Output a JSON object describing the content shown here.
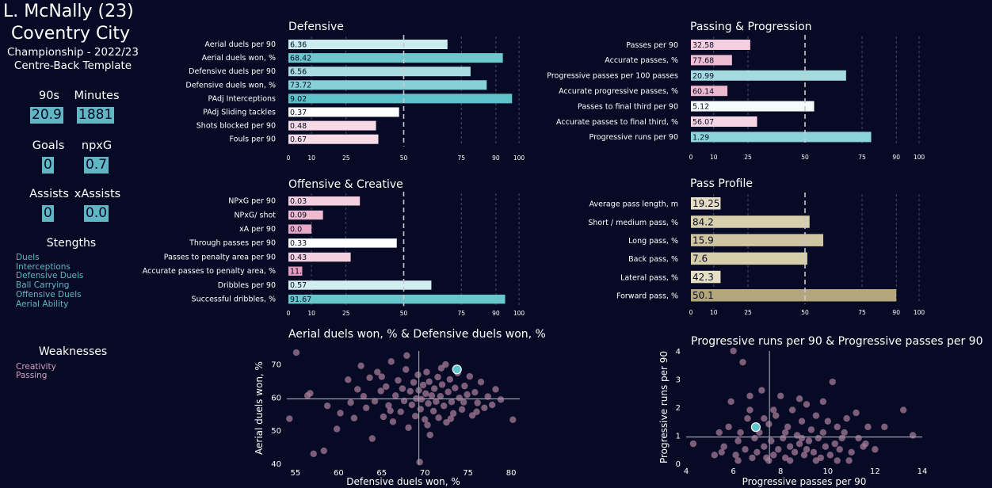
{
  "player": {
    "name": "L. McNally (23)",
    "team": "Coventry City",
    "competition": "Championship - 2022/23",
    "template": "Centre-Back Template"
  },
  "summary": {
    "nineties_label": "90s",
    "nineties_value": "20.9",
    "minutes_label": "Minutes",
    "minutes_value": "1881",
    "goals_label": "Goals",
    "goals_value": "0",
    "npxg_label": "npxG",
    "npxg_value": "0.7",
    "assists_label": "Assists",
    "assists_value": "0",
    "xassists_label": "xAssists",
    "xassists_value": "0.0"
  },
  "strengths": {
    "title": "Stengths",
    "items": [
      "Duels",
      "Interceptions",
      "Defensive Duels",
      "Ball Carrying",
      "Offensive Duels",
      "Aerial Ability"
    ]
  },
  "weaknesses": {
    "title": "Weaknesses",
    "items": [
      "Creativity",
      "Passing"
    ]
  },
  "colors": {
    "background": "#070a24",
    "strength_text": "#5fb7c4",
    "weakness_text": "#d99fc3",
    "scatter_point": "#a57b97",
    "highlight_point": "#5ec6cc",
    "value_box": "#5fb7c4"
  },
  "chart_data": [
    {
      "id": "defensive",
      "type": "bar",
      "orientation": "horizontal",
      "title": "Defensive",
      "xlim": [
        0,
        100
      ],
      "ticks": [
        0,
        10,
        25,
        50,
        75,
        90,
        100
      ],
      "median_line": 50,
      "bars": [
        {
          "label": "Aerial duels per 90",
          "value_text": "6.36",
          "percentile": 69,
          "color": "#cbecef"
        },
        {
          "label": "Aerial duels won, %",
          "value_text": "68.42",
          "percentile": 93,
          "color": "#6cc7ce"
        },
        {
          "label": "Defensive duels per 90",
          "value_text": "6.56",
          "percentile": 79,
          "color": "#a9dde2"
        },
        {
          "label": "Defensive duels won, %",
          "value_text": "73.72",
          "percentile": 86,
          "color": "#86d1d7"
        },
        {
          "label": "PAdj Interceptions",
          "value_text": "9.02",
          "percentile": 97,
          "color": "#5fc2ca"
        },
        {
          "label": "PAdj Sliding tackles",
          "value_text": "0.37",
          "percentile": 48,
          "color": "#ffffff"
        },
        {
          "label": "Shots blocked per 90",
          "value_text": "0.48",
          "percentile": 38,
          "color": "#f6dbe7"
        },
        {
          "label": "Fouls per 90",
          "value_text": "0.67",
          "percentile": 39,
          "color": "#f7dce8"
        }
      ]
    },
    {
      "id": "passing",
      "type": "bar",
      "orientation": "horizontal",
      "title": "Passing & Progression",
      "xlim": [
        0,
        100
      ],
      "ticks": [
        0,
        10,
        25,
        50,
        75,
        90,
        100
      ],
      "median_line": 50,
      "bars": [
        {
          "label": "Passes per 90",
          "value_text": "32.58",
          "percentile": 26,
          "color": "#f3cfdf"
        },
        {
          "label": "Accurate passes, %",
          "value_text": "77.68",
          "percentile": 18,
          "color": "#eebdd3"
        },
        {
          "label": "Progressive passes per 100 passes",
          "value_text": "20.99",
          "percentile": 68,
          "color": "#a3dbe0"
        },
        {
          "label": "Accurate progressive passes, %",
          "value_text": "60.14",
          "percentile": 16,
          "color": "#ecb8cf"
        },
        {
          "label": "Passes to final third per 90",
          "value_text": "5.12",
          "percentile": 54,
          "color": "#f5fbfc"
        },
        {
          "label": "Accurate passes to final third, %",
          "value_text": "56.07",
          "percentile": 29,
          "color": "#f5d5e3"
        },
        {
          "label": "Progressive runs per 90",
          "value_text": "1.29",
          "percentile": 79,
          "color": "#8dd4da"
        }
      ]
    },
    {
      "id": "offensive",
      "type": "bar",
      "orientation": "horizontal",
      "title": "Offensive & Creative",
      "xlim": [
        0,
        100
      ],
      "ticks": [
        0,
        10,
        25,
        50,
        75,
        90,
        100
      ],
      "median_line": 50,
      "bars": [
        {
          "label": "NPxG per 90",
          "value_text": "0.03",
          "percentile": 31,
          "color": "#f3cfe0"
        },
        {
          "label": "NPxG/ shot",
          "value_text": "0.09",
          "percentile": 15,
          "color": "#eebad0"
        },
        {
          "label": "xA per 90",
          "value_text": "0.0",
          "percentile": 10,
          "color": "#e8a9c5"
        },
        {
          "label": "Through passes per 90",
          "value_text": "0.33",
          "percentile": 47,
          "color": "#ffffff"
        },
        {
          "label": "Passes to penalty area per 90",
          "value_text": "0.43",
          "percentile": 27,
          "color": "#f3cfdf"
        },
        {
          "label": "Accurate passes to penalty area, %",
          "value_text": "11.",
          "percentile": 6,
          "color": "#e39cbd"
        },
        {
          "label": "Dribbles per 90",
          "value_text": "0.57",
          "percentile": 62,
          "color": "#d2eef1"
        },
        {
          "label": "Successful dribbles, %",
          "value_text": "91.67",
          "percentile": 94,
          "color": "#6ac6cd"
        }
      ]
    },
    {
      "id": "pass-profile",
      "type": "bar",
      "orientation": "horizontal",
      "title": "Pass Profile",
      "xlim": [
        0,
        100
      ],
      "ticks": [
        0,
        10,
        25,
        50,
        75,
        90,
        100
      ],
      "median_line": 50,
      "bars": [
        {
          "label": "Average pass length, m",
          "value_text": "19.25",
          "percentile": 13,
          "color": "#e6dec5"
        },
        {
          "label": "Short / medium pass, %",
          "value_text": "84.2",
          "percentile": 52,
          "color": "#d8cfae"
        },
        {
          "label": "Long pass, %",
          "value_text": "15.9",
          "percentile": 58,
          "color": "#cfc5a2"
        },
        {
          "label": "Back pass, %",
          "value_text": "7.6",
          "percentile": 51,
          "color": "#d6cdab"
        },
        {
          "label": "Lateral pass, %",
          "value_text": "42.3",
          "percentile": 13,
          "color": "#e6dec5"
        },
        {
          "label": "Forward pass, %",
          "value_text": "50.1",
          "percentile": 90,
          "color": "#b3a67c"
        }
      ]
    },
    {
      "id": "scatter-duels",
      "type": "scatter",
      "title": "Aerial duels won, % & Defensive duels won, %",
      "xlabel": "Defensive duels won, %",
      "ylabel": "Aerial duels won, %",
      "xlim": [
        54,
        81
      ],
      "ylim": [
        39.5,
        74
      ],
      "xticks": [
        55,
        60,
        65,
        70,
        75,
        80
      ],
      "yticks": [
        40,
        50,
        60,
        70
      ],
      "mean_x": 69.3,
      "mean_y": 59.5,
      "highlight": {
        "x": 73.72,
        "y": 68.42
      },
      "points": [
        [
          55.1,
          73.5
        ],
        [
          56.7,
          61.2
        ],
        [
          56.4,
          60.5
        ],
        [
          58.3,
          43.8
        ],
        [
          58.7,
          57.4
        ],
        [
          59.8,
          50.4
        ],
        [
          60.2,
          55.2
        ],
        [
          61.1,
          65.3
        ],
        [
          61.4,
          58.4
        ],
        [
          61.8,
          53.7
        ],
        [
          62.2,
          62.4
        ],
        [
          62.6,
          69.5
        ],
        [
          62.9,
          60.3
        ],
        [
          63.2,
          56.8
        ],
        [
          63.6,
          65.9
        ],
        [
          63.9,
          47.5
        ],
        [
          64.2,
          58.8
        ],
        [
          64.5,
          67.6
        ],
        [
          64.9,
          61.9
        ],
        [
          65.2,
          54.1
        ],
        [
          65.5,
          63.2
        ],
        [
          65.8,
          57.5
        ],
        [
          66.1,
          70.8
        ],
        [
          66.3,
          52.6
        ],
        [
          66.6,
          60.5
        ],
        [
          66.9,
          65.1
        ],
        [
          67.2,
          55.6
        ],
        [
          67.4,
          62.6
        ],
        [
          67.6,
          58.9
        ],
        [
          67.9,
          72.6
        ],
        [
          68.1,
          50.8
        ],
        [
          68.3,
          61.8
        ],
        [
          68.5,
          57.7
        ],
        [
          68.7,
          64.5
        ],
        [
          68.9,
          54.3
        ],
        [
          69.0,
          59.6
        ],
        [
          69.2,
          66.8
        ],
        [
          69.3,
          62.1
        ],
        [
          69.4,
          40.4
        ],
        [
          69.5,
          56.4
        ],
        [
          69.6,
          59.4
        ],
        [
          69.8,
          63.7
        ],
        [
          70.0,
          53.3
        ],
        [
          70.1,
          61.1
        ],
        [
          70.2,
          67.6
        ],
        [
          70.4,
          58.1
        ],
        [
          70.5,
          64.7
        ],
        [
          70.6,
          48.6
        ],
        [
          70.8,
          60.5
        ],
        [
          71.0,
          55.8
        ],
        [
          71.1,
          62.6
        ],
        [
          71.3,
          58.7
        ],
        [
          71.5,
          66.1
        ],
        [
          71.6,
          53.8
        ],
        [
          71.8,
          60.3
        ],
        [
          72.0,
          63.8
        ],
        [
          72.2,
          57.4
        ],
        [
          72.4,
          69.9
        ],
        [
          72.5,
          52.4
        ],
        [
          72.7,
          61.6
        ],
        [
          72.9,
          65.4
        ],
        [
          73.1,
          58.6
        ],
        [
          73.3,
          55.1
        ],
        [
          73.5,
          62.8
        ],
        [
          73.8,
          67.3
        ],
        [
          74.0,
          59.8
        ],
        [
          74.3,
          56.3
        ],
        [
          74.6,
          63.4
        ],
        [
          74.9,
          60.8
        ],
        [
          75.2,
          66.3
        ],
        [
          75.5,
          54.5
        ],
        [
          75.8,
          61.5
        ],
        [
          76.1,
          58.3
        ],
        [
          76.5,
          64.6
        ],
        [
          76.9,
          56.8
        ],
        [
          77.3,
          60.2
        ],
        [
          77.8,
          57.7
        ],
        [
          78.2,
          62.4
        ],
        [
          78.8,
          59.3
        ],
        [
          80.2,
          53.2
        ],
        [
          65.0,
          66.2
        ],
        [
          66.0,
          55.9
        ],
        [
          67.8,
          68.4
        ],
        [
          70.3,
          51.6
        ],
        [
          71.9,
          68.8
        ],
        [
          73.0,
          53.5
        ],
        [
          74.5,
          58.5
        ],
        [
          76.0,
          55.6
        ],
        [
          54.3,
          53.5
        ],
        [
          57.1,
          42.9
        ]
      ]
    },
    {
      "id": "scatter-progression",
      "type": "scatter",
      "title": "Progressive runs per 90 & Progressive passes per 90",
      "xlabel": "Progressive passes per 90",
      "ylabel": "Progressive runs per 90",
      "xlim": [
        4,
        14
      ],
      "ylim": [
        0,
        4
      ],
      "xticks": [
        4,
        6,
        8,
        10,
        12,
        14
      ],
      "yticks": [
        0,
        1,
        2,
        3,
        4
      ],
      "mean_x": 7.53,
      "mean_y": 0.94,
      "highlight": {
        "x": 6.95,
        "y": 1.29
      },
      "points": [
        [
          4.3,
          0.7
        ],
        [
          5.2,
          0.3
        ],
        [
          5.5,
          0.4
        ],
        [
          5.6,
          0.6
        ],
        [
          5.8,
          1.3
        ],
        [
          5.9,
          2.2
        ],
        [
          6.0,
          4.0
        ],
        [
          6.1,
          0.3
        ],
        [
          6.2,
          0.8
        ],
        [
          6.3,
          1.1
        ],
        [
          6.4,
          3.6
        ],
        [
          6.5,
          0.5
        ],
        [
          6.6,
          1.6
        ],
        [
          6.7,
          2.4
        ],
        [
          6.8,
          0.2
        ],
        [
          6.9,
          0.9
        ],
        [
          7.0,
          0.4
        ],
        [
          7.1,
          1.1
        ],
        [
          7.2,
          2.6
        ],
        [
          7.3,
          0.6
        ],
        [
          7.4,
          0.2
        ],
        [
          7.5,
          1.4
        ],
        [
          7.6,
          0.8
        ],
        [
          7.7,
          0.3
        ],
        [
          7.8,
          1.7
        ],
        [
          7.9,
          0.5
        ],
        [
          8.0,
          2.4
        ],
        [
          8.1,
          0.9
        ],
        [
          8.2,
          0.2
        ],
        [
          8.3,
          1.3
        ],
        [
          8.4,
          0.6
        ],
        [
          8.5,
          1.9
        ],
        [
          8.6,
          0.4
        ],
        [
          8.7,
          1.0
        ],
        [
          8.8,
          0.7
        ],
        [
          8.9,
          1.5
        ],
        [
          9.0,
          0.3
        ],
        [
          9.1,
          2.1
        ],
        [
          9.2,
          0.8
        ],
        [
          9.3,
          1.2
        ],
        [
          9.4,
          0.4
        ],
        [
          9.5,
          1.7
        ],
        [
          9.6,
          0.9
        ],
        [
          9.7,
          0.2
        ],
        [
          9.8,
          1.1
        ],
        [
          9.9,
          0.6
        ],
        [
          10.0,
          1.5
        ],
        [
          10.1,
          0.3
        ],
        [
          10.2,
          2.9
        ],
        [
          10.3,
          0.7
        ],
        [
          10.4,
          1.3
        ],
        [
          10.5,
          0.5
        ],
        [
          10.6,
          0.9
        ],
        [
          10.8,
          1.6
        ],
        [
          11.0,
          0.4
        ],
        [
          11.2,
          1.8
        ],
        [
          11.5,
          0.6
        ],
        [
          11.7,
          1.3
        ],
        [
          12.0,
          0.5
        ],
        [
          13.2,
          1.9
        ],
        [
          13.6,
          1.0
        ],
        [
          8.4,
          0.1
        ],
        [
          9.5,
          0.1
        ],
        [
          10.9,
          0.1
        ],
        [
          6.7,
          1.9
        ],
        [
          7.7,
          1.9
        ],
        [
          8.8,
          2.3
        ],
        [
          9.8,
          2.2
        ],
        [
          10.4,
          0.1
        ],
        [
          11.3,
          0.9
        ],
        [
          12.4,
          1.3
        ],
        [
          5.4,
          1.1
        ],
        [
          7.3,
          1.6
        ],
        [
          8.2,
          1.1
        ],
        [
          9.1,
          0.5
        ],
        [
          10.7,
          1.1
        ],
        [
          11.6,
          0.7
        ],
        [
          6.2,
          0.1
        ],
        [
          7.5,
          0.1
        ],
        [
          8.9,
          0.9
        ]
      ]
    }
  ]
}
